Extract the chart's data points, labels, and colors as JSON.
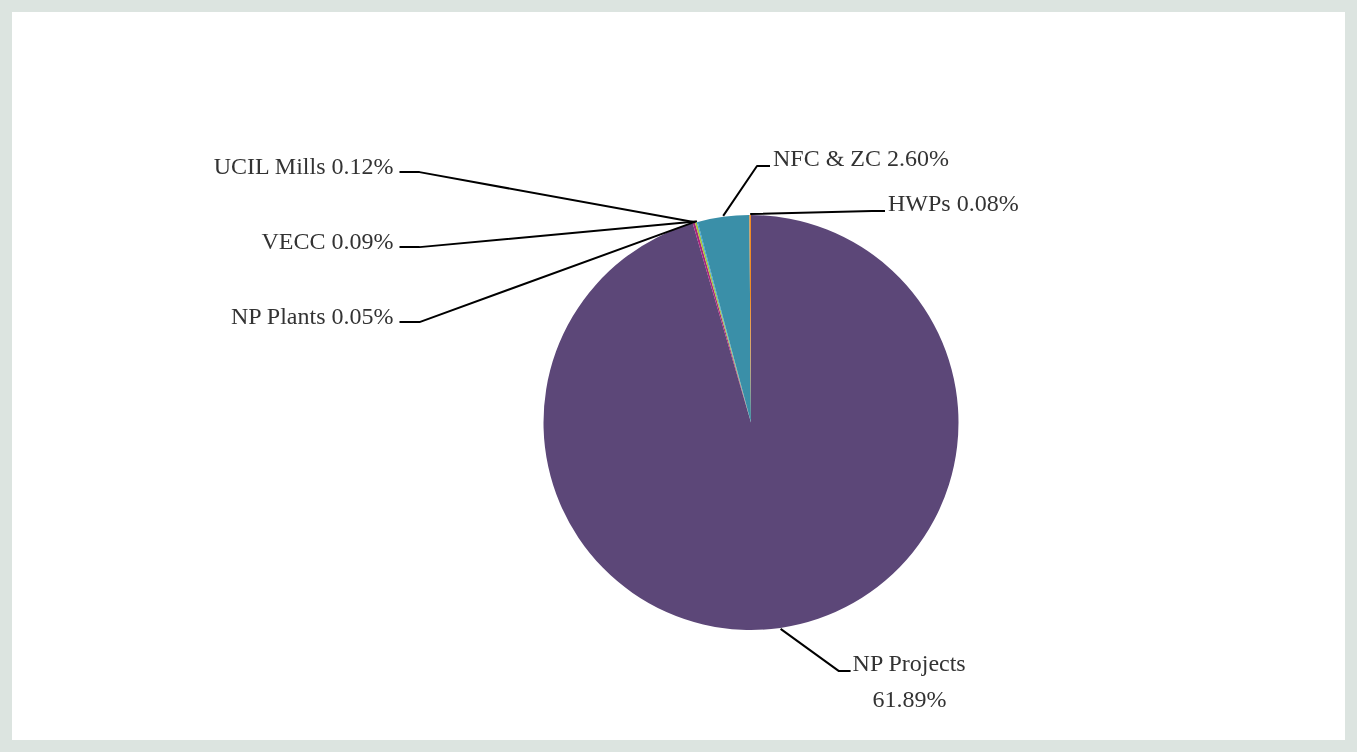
{
  "chart_data": {
    "type": "pie",
    "categories": [
      "NP Projects",
      "UCIL Mills",
      "VECC",
      "NP Plants",
      "NFC & ZC",
      "HWPs"
    ],
    "values": [
      61.89,
      0.12,
      0.09,
      0.05,
      2.6,
      0.08
    ],
    "colors": [
      "#5c4778",
      "#a8257d",
      "#a9c538",
      "#2a9fd8",
      "#3a8fa8",
      "#f08a24"
    ],
    "value_labels": [
      "61.89%",
      "0.12%",
      "0.09%",
      "0.05%",
      "2.60%",
      "0.08%"
    ]
  }
}
